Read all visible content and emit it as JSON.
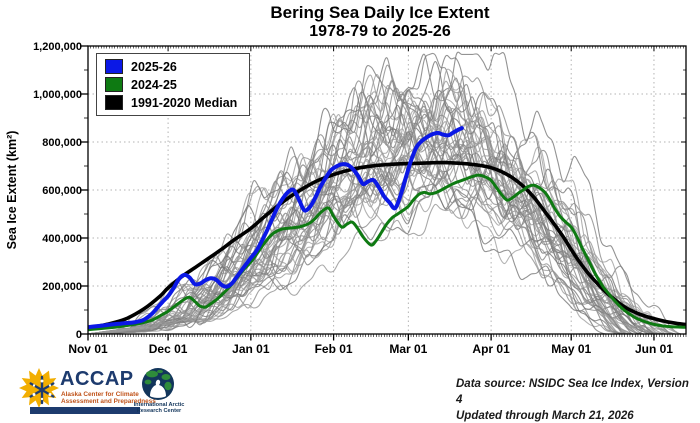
{
  "title": {
    "line1": "Bering Sea Daily Ice Extent",
    "line2": "1978-79 to 2025-26"
  },
  "legend": {
    "items": [
      {
        "label": "2025-26",
        "color": "#0b18e6"
      },
      {
        "label": "2024-25",
        "color": "#0e7a12"
      },
      {
        "label": "1991-2020 Median",
        "color": "#000000"
      }
    ]
  },
  "chart_data": {
    "type": "line",
    "title": "Bering Sea Daily Ice Extent 1978-79 to 2025-26",
    "x_axis": {
      "tick_labels": [
        "Nov 01",
        "Dec 01",
        "Jan 01",
        "Feb 01",
        "Mar 01",
        "Apr 01",
        "May 01",
        "Jun 01"
      ],
      "tick_days": [
        0,
        30,
        61,
        92,
        120,
        151,
        181,
        212
      ],
      "domain_days": [
        0,
        224
      ],
      "grid": "dotted"
    },
    "y_axis": {
      "label": "Sea Ice Extent (km²)",
      "min": 0,
      "max": 1200000,
      "tick_step": 200000,
      "tick_labels": [
        "0",
        "200,000",
        "400,000",
        "600,000",
        "800,000",
        "1,000,000",
        "1,200,000"
      ],
      "grid": "dotted"
    },
    "series": [
      {
        "name": "2025-26",
        "color": "#0b18e6",
        "width": 4,
        "points_day_km2": [
          [
            0,
            28000
          ],
          [
            3,
            32000
          ],
          [
            6,
            36000
          ],
          [
            9,
            40000
          ],
          [
            12,
            43000
          ],
          [
            15,
            46000
          ],
          [
            18,
            50000
          ],
          [
            21,
            60000
          ],
          [
            24,
            85000
          ],
          [
            26,
            110000
          ],
          [
            28,
            135000
          ],
          [
            30,
            158000
          ],
          [
            32,
            190000
          ],
          [
            34,
            228000
          ],
          [
            36,
            246000
          ],
          [
            38,
            236000
          ],
          [
            40,
            208000
          ],
          [
            42,
            210000
          ],
          [
            44,
            224000
          ],
          [
            46,
            232000
          ],
          [
            48,
            226000
          ],
          [
            50,
            205000
          ],
          [
            52,
            197000
          ],
          [
            54,
            212000
          ],
          [
            56,
            242000
          ],
          [
            58,
            272000
          ],
          [
            61,
            317000
          ],
          [
            63,
            345000
          ],
          [
            65,
            385000
          ],
          [
            67,
            430000
          ],
          [
            69,
            480000
          ],
          [
            71,
            528000
          ],
          [
            73,
            565000
          ],
          [
            75,
            592000
          ],
          [
            77,
            600000
          ],
          [
            79,
            560000
          ],
          [
            81,
            516000
          ],
          [
            83,
            528000
          ],
          [
            85,
            565000
          ],
          [
            87,
            612000
          ],
          [
            89,
            650000
          ],
          [
            91,
            682000
          ],
          [
            93,
            698000
          ],
          [
            95,
            707000
          ],
          [
            97,
            706000
          ],
          [
            99,
            690000
          ],
          [
            101,
            662000
          ],
          [
            103,
            625000
          ],
          [
            105,
            636000
          ],
          [
            107,
            641000
          ],
          [
            109,
            610000
          ],
          [
            111,
            572000
          ],
          [
            113,
            547000
          ],
          [
            115,
            524000
          ],
          [
            117,
            575000
          ],
          [
            119,
            650000
          ],
          [
            121,
            722000
          ],
          [
            123,
            778000
          ],
          [
            125,
            804000
          ],
          [
            127,
            820000
          ],
          [
            129,
            832000
          ],
          [
            131,
            838000
          ],
          [
            133,
            831000
          ],
          [
            135,
            828000
          ],
          [
            137,
            841000
          ],
          [
            139,
            853000
          ],
          [
            140,
            858000
          ]
        ]
      },
      {
        "name": "2024-25",
        "color": "#0e7a12",
        "width": 3,
        "points_day_km2": [
          [
            0,
            18000
          ],
          [
            4,
            22000
          ],
          [
            8,
            26000
          ],
          [
            12,
            31000
          ],
          [
            16,
            38000
          ],
          [
            20,
            46000
          ],
          [
            24,
            58000
          ],
          [
            27,
            76000
          ],
          [
            30,
            95000
          ],
          [
            33,
            120000
          ],
          [
            36,
            144000
          ],
          [
            38,
            153000
          ],
          [
            40,
            136000
          ],
          [
            42,
            116000
          ],
          [
            44,
            112000
          ],
          [
            46,
            126000
          ],
          [
            48,
            142000
          ],
          [
            50,
            162000
          ],
          [
            53,
            196000
          ],
          [
            56,
            236000
          ],
          [
            58,
            264000
          ],
          [
            61,
            300000
          ],
          [
            63,
            330000
          ],
          [
            65,
            362000
          ],
          [
            67,
            392000
          ],
          [
            69,
            416000
          ],
          [
            71,
            430000
          ],
          [
            73,
            438000
          ],
          [
            75,
            441000
          ],
          [
            77,
            443000
          ],
          [
            79,
            446000
          ],
          [
            81,
            452000
          ],
          [
            83,
            462000
          ],
          [
            85,
            480000
          ],
          [
            87,
            505000
          ],
          [
            90,
            525000
          ],
          [
            92,
            490000
          ],
          [
            95,
            446000
          ],
          [
            97,
            458000
          ],
          [
            99,
            466000
          ],
          [
            101,
            440000
          ],
          [
            103,
            405000
          ],
          [
            106,
            371000
          ],
          [
            108,
            390000
          ],
          [
            110,
            425000
          ],
          [
            112,
            460000
          ],
          [
            114,
            485000
          ],
          [
            116,
            500000
          ],
          [
            118,
            515000
          ],
          [
            120,
            532000
          ],
          [
            122,
            560000
          ],
          [
            124,
            582000
          ],
          [
            126,
            590000
          ],
          [
            128,
            584000
          ],
          [
            130,
            588000
          ],
          [
            132,
            598000
          ],
          [
            134,
            610000
          ],
          [
            136,
            622000
          ],
          [
            138,
            632000
          ],
          [
            140,
            640000
          ],
          [
            142,
            648000
          ],
          [
            144,
            656000
          ],
          [
            146,
            662000
          ],
          [
            148,
            658000
          ],
          [
            150,
            648000
          ],
          [
            151,
            640000
          ],
          [
            153,
            610000
          ],
          [
            155,
            580000
          ],
          [
            157,
            558000
          ],
          [
            159,
            568000
          ],
          [
            161,
            585000
          ],
          [
            163,
            600000
          ],
          [
            165,
            615000
          ],
          [
            167,
            620000
          ],
          [
            169,
            610000
          ],
          [
            171,
            592000
          ],
          [
            173,
            560000
          ],
          [
            175,
            520000
          ],
          [
            177,
            488000
          ],
          [
            179,
            466000
          ],
          [
            181,
            445000
          ],
          [
            183,
            408000
          ],
          [
            185,
            360000
          ],
          [
            187,
            318000
          ],
          [
            189,
            272000
          ],
          [
            191,
            232000
          ],
          [
            193,
            196000
          ],
          [
            195,
            168000
          ],
          [
            197,
            142000
          ],
          [
            199,
            118000
          ],
          [
            201,
            98000
          ],
          [
            203,
            82000
          ],
          [
            205,
            68000
          ],
          [
            207,
            58000
          ],
          [
            209,
            50000
          ],
          [
            212,
            40000
          ],
          [
            215,
            34000
          ],
          [
            218,
            31000
          ],
          [
            221,
            29000
          ],
          [
            224,
            28000
          ]
        ]
      },
      {
        "name": "1991-2020 Median",
        "color": "#000000",
        "width": 3.6,
        "points_day_km2": [
          [
            0,
            25000
          ],
          [
            7,
            40000
          ],
          [
            14,
            62000
          ],
          [
            21,
            105000
          ],
          [
            27,
            158000
          ],
          [
            30,
            192000
          ],
          [
            35,
            238000
          ],
          [
            40,
            276000
          ],
          [
            45,
            314000
          ],
          [
            50,
            353000
          ],
          [
            55,
            394000
          ],
          [
            61,
            440000
          ],
          [
            66,
            488000
          ],
          [
            71,
            533000
          ],
          [
            76,
            574000
          ],
          [
            81,
            609000
          ],
          [
            86,
            639000
          ],
          [
            92,
            664000
          ],
          [
            97,
            681000
          ],
          [
            102,
            693000
          ],
          [
            107,
            701000
          ],
          [
            112,
            706000
          ],
          [
            117,
            709000
          ],
          [
            122,
            711000
          ],
          [
            127,
            713000
          ],
          [
            132,
            714000
          ],
          [
            137,
            713000
          ],
          [
            142,
            709000
          ],
          [
            147,
            702000
          ],
          [
            151,
            693000
          ],
          [
            155,
            676000
          ],
          [
            159,
            651000
          ],
          [
            163,
            616000
          ],
          [
            167,
            570000
          ],
          [
            171,
            512000
          ],
          [
            175,
            452000
          ],
          [
            178,
            405000
          ],
          [
            181,
            352000
          ],
          [
            184,
            302000
          ],
          [
            187,
            258000
          ],
          [
            190,
            220000
          ],
          [
            193,
            185000
          ],
          [
            196,
            155000
          ],
          [
            199,
            128000
          ],
          [
            202,
            106000
          ],
          [
            205,
            90000
          ],
          [
            208,
            77000
          ],
          [
            212,
            64000
          ],
          [
            216,
            53000
          ],
          [
            220,
            45000
          ],
          [
            224,
            39000
          ]
        ]
      }
    ],
    "background_series": {
      "count": 45,
      "color_range": [
        "#6e6e6e",
        "#a5a5a5"
      ],
      "description": "Unlabeled individual seasons 1978-79 through 2023-24; tangled gray curves peaking roughly 450,000–1,150,000 km² between February and April (values approximate)",
      "approx_envelope_km2": {
        "days": [
          0,
          30,
          61,
          92,
          120,
          140,
          151,
          181,
          212,
          224
        ],
        "min": [
          2000,
          25000,
          120000,
          300000,
          380000,
          400000,
          330000,
          150000,
          8000,
          2000
        ],
        "max": [
          80000,
          330000,
          700000,
          950000,
          1080000,
          1150000,
          1100000,
          900000,
          260000,
          120000
        ]
      }
    }
  },
  "footer": {
    "accap": {
      "name": "ACCAP",
      "tagline_line1": "Alaska Center for Climate",
      "tagline_line2": "Assessment and Preparedness"
    },
    "iarc": {
      "caption_line1": "International Arctic",
      "caption_line2": "Research Center"
    },
    "source_line1": "Data source: NSIDC Sea Ice Index, Version 4",
    "source_line2": "Updated through March 21, 2026"
  }
}
